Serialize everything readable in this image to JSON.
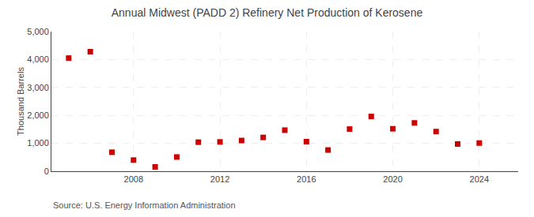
{
  "chart_data": {
    "type": "scatter",
    "title": "Annual Midwest (PADD 2) Refinery Net Production of Kerosene",
    "ylabel": "Thousand Barrels",
    "annotations": [
      "Source: U.S. Energy Information Administration"
    ],
    "x": [
      2005,
      2006,
      2007,
      2008,
      2009,
      2010,
      2011,
      2012,
      2013,
      2014,
      2015,
      2016,
      2017,
      2018,
      2019,
      2020,
      2021,
      2022,
      2023,
      2024
    ],
    "values": [
      4050,
      4280,
      680,
      400,
      155,
      510,
      1040,
      1050,
      1100,
      1210,
      1470,
      1060,
      760,
      1510,
      1960,
      1520,
      1730,
      1420,
      975,
      1010
    ],
    "color": "#cc0000",
    "marker": "square",
    "xlim": [
      2004.2,
      2025.8
    ],
    "xticks": [
      2008,
      2012,
      2016,
      2020,
      2024
    ],
    "ylim": [
      0,
      5000
    ],
    "yticks": [
      0,
      {
        "value": 1000,
        "label": "1,000"
      },
      {
        "value": 2000,
        "label": "2,000"
      },
      {
        "value": 3000,
        "label": "3,000"
      },
      {
        "value": 4000,
        "label": "4,000"
      },
      {
        "value": 5000,
        "label": "5,000"
      }
    ],
    "grid": true
  }
}
